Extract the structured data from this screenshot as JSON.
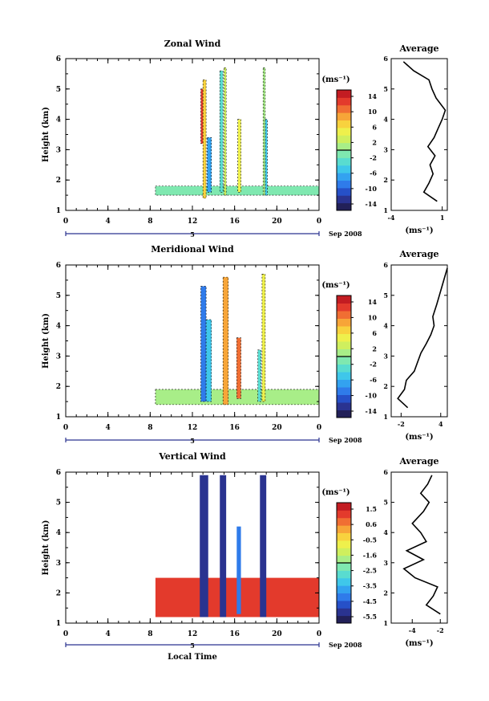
{
  "panels": [
    {
      "title": "Zonal Wind",
      "ylabel": "Height (km)",
      "x_ticks": [
        "0",
        "4",
        "8",
        "12",
        "16",
        "20",
        "0"
      ],
      "y_ticks": [
        "1",
        "2",
        "3",
        "4",
        "5",
        "6"
      ],
      "date_marker": "5",
      "date_label": "Sep 2008",
      "colorbar": {
        "unit": "(ms⁻¹)",
        "ticks": [
          "14",
          "10",
          "6",
          "2",
          "-2",
          "-6",
          "-10",
          "-14"
        ],
        "range": [
          -16,
          16
        ]
      },
      "average": {
        "title": "Average",
        "x_ticks": [
          "-4",
          "1"
        ],
        "y_ticks": [
          "1",
          "2",
          "3",
          "4",
          "5",
          "6"
        ],
        "xlabel": "(ms⁻¹)"
      }
    },
    {
      "title": "Meridional Wind",
      "ylabel": "Height (km)",
      "x_ticks": [
        "0",
        "4",
        "8",
        "12",
        "16",
        "20",
        "0"
      ],
      "y_ticks": [
        "1",
        "2",
        "3",
        "4",
        "5",
        "6"
      ],
      "date_marker": "5",
      "date_label": "Sep 2008",
      "colorbar": {
        "unit": "(ms⁻¹)",
        "ticks": [
          "14",
          "10",
          "6",
          "2",
          "-2",
          "-6",
          "-10",
          "-14"
        ],
        "range": [
          -16,
          16
        ]
      },
      "average": {
        "title": "Average",
        "x_ticks": [
          "-2",
          "4"
        ],
        "y_ticks": [
          "1",
          "2",
          "3",
          "4",
          "5",
          "6"
        ],
        "xlabel": "(ms⁻¹)"
      }
    },
    {
      "title": "Vertical Wind",
      "ylabel": "Height (km)",
      "xlabel": "Local Time",
      "x_ticks": [
        "0",
        "4",
        "8",
        "12",
        "16",
        "20",
        "0"
      ],
      "y_ticks": [
        "1",
        "2",
        "3",
        "4",
        "5",
        "6"
      ],
      "date_marker": "5",
      "date_label": "Sep 2008",
      "colorbar": {
        "unit": "(ms⁻¹)",
        "ticks": [
          "1.5",
          "0.6",
          "-0.5",
          "-1.6",
          "-2.5",
          "-3.5",
          "-4.5",
          "-5.5"
        ],
        "range": [
          -6,
          2
        ]
      },
      "average": {
        "title": "Average",
        "x_ticks": [
          "-4",
          "-2"
        ],
        "y_ticks": [
          "1",
          "2",
          "3",
          "4",
          "5",
          "6"
        ],
        "xlabel": "(ms⁻¹)"
      }
    }
  ],
  "chart_data": [
    {
      "type": "heatmap",
      "title": "Zonal Wind",
      "xlabel": "",
      "ylabel": "Height (km)",
      "xlim": [
        0,
        24
      ],
      "ylim": [
        1,
        6
      ],
      "colorbar_range": [
        -16,
        16
      ],
      "columns": [
        {
          "x0": 8.5,
          "x1": 24,
          "y0": 1.5,
          "y1": 1.8,
          "v": -2
        },
        {
          "x0": 13.0,
          "x1": 13.3,
          "y0": 1.4,
          "y1": 5.3,
          "v": 6
        },
        {
          "x0": 12.8,
          "x1": 13.0,
          "y0": 3.2,
          "y1": 5.0,
          "v": 12
        },
        {
          "x0": 13.4,
          "x1": 13.8,
          "y0": 1.6,
          "y1": 3.4,
          "v": -8
        },
        {
          "x0": 14.6,
          "x1": 14.9,
          "y0": 1.6,
          "y1": 5.6,
          "v": -4
        },
        {
          "x0": 15.0,
          "x1": 15.2,
          "y0": 1.5,
          "y1": 5.7,
          "v": 2
        },
        {
          "x0": 16.3,
          "x1": 16.6,
          "y0": 1.6,
          "y1": 4.0,
          "v": 4
        },
        {
          "x0": 18.7,
          "x1": 18.9,
          "y0": 1.5,
          "y1": 5.7,
          "v": 0
        },
        {
          "x0": 18.9,
          "x1": 19.1,
          "y0": 1.5,
          "y1": 4.0,
          "v": -6
        }
      ],
      "average_profile": {
        "xlim": [
          -4,
          1.5
        ],
        "ylim": [
          1,
          6
        ],
        "x": [
          0.5,
          -0.8,
          -0.3,
          0.1,
          -0.2,
          0.3,
          -0.4,
          0.2,
          0.6,
          1.0,
          1.3,
          0.4,
          0.0,
          -0.3,
          -1.8,
          -2.8
        ],
        "y": [
          1.3,
          1.6,
          1.9,
          2.2,
          2.5,
          2.8,
          3.1,
          3.4,
          3.7,
          4.0,
          4.3,
          4.7,
          5.0,
          5.3,
          5.6,
          5.9
        ]
      }
    },
    {
      "type": "heatmap",
      "title": "Meridional Wind",
      "xlabel": "",
      "ylabel": "Height (km)",
      "xlim": [
        0,
        24
      ],
      "ylim": [
        1,
        6
      ],
      "colorbar_range": [
        -16,
        16
      ],
      "columns": [
        {
          "x0": 8.5,
          "x1": 24,
          "y0": 1.4,
          "y1": 1.9,
          "v": 0
        },
        {
          "x0": 12.8,
          "x1": 13.3,
          "y0": 1.5,
          "y1": 5.3,
          "v": -10
        },
        {
          "x0": 13.3,
          "x1": 13.8,
          "y0": 1.5,
          "y1": 4.2,
          "v": -6
        },
        {
          "x0": 14.9,
          "x1": 15.4,
          "y0": 1.4,
          "y1": 5.6,
          "v": 8
        },
        {
          "x0": 16.2,
          "x1": 16.6,
          "y0": 1.6,
          "y1": 3.6,
          "v": 10
        },
        {
          "x0": 18.6,
          "x1": 18.9,
          "y0": 1.5,
          "y1": 5.7,
          "v": 4
        },
        {
          "x0": 18.2,
          "x1": 18.5,
          "y0": 1.5,
          "y1": 3.2,
          "v": -4
        }
      ],
      "average_profile": {
        "xlim": [
          -3.5,
          5
        ],
        "ylim": [
          1,
          6
        ],
        "x": [
          -1.0,
          -2.5,
          -1.5,
          -1.2,
          0.0,
          0.5,
          1.0,
          1.8,
          2.5,
          3.0,
          2.8,
          3.4,
          3.8,
          4.2,
          4.6,
          5.0
        ],
        "y": [
          1.3,
          1.6,
          1.9,
          2.2,
          2.5,
          2.8,
          3.1,
          3.4,
          3.7,
          4.0,
          4.3,
          4.7,
          5.0,
          5.3,
          5.6,
          5.9
        ]
      }
    },
    {
      "type": "heatmap",
      "title": "Vertical Wind",
      "xlabel": "Local Time",
      "ylabel": "Height (km)",
      "xlim": [
        0,
        24
      ],
      "ylim": [
        1,
        6
      ],
      "colorbar_range": [
        -6,
        2
      ],
      "columns": [
        {
          "x0": 8.5,
          "x1": 24,
          "y0": 1.2,
          "y1": 2.5,
          "v": 1.0
        },
        {
          "x0": 12.7,
          "x1": 13.5,
          "y0": 1.2,
          "y1": 5.9,
          "v": -5.5
        },
        {
          "x0": 14.6,
          "x1": 15.2,
          "y0": 1.2,
          "y1": 5.9,
          "v": -5.5
        },
        {
          "x0": 16.2,
          "x1": 16.6,
          "y0": 1.3,
          "y1": 4.2,
          "v": -4.5
        },
        {
          "x0": 18.4,
          "x1": 19.0,
          "y0": 1.2,
          "y1": 5.9,
          "v": -5.5
        }
      ],
      "average_profile": {
        "xlim": [
          -5.5,
          -1.5
        ],
        "ylim": [
          1,
          6
        ],
        "x": [
          -2.0,
          -3.0,
          -2.5,
          -2.2,
          -3.8,
          -4.6,
          -3.2,
          -4.4,
          -3.0,
          -3.4,
          -4.0,
          -3.2,
          -2.8,
          -3.4,
          -2.9,
          -2.6
        ],
        "y": [
          1.3,
          1.6,
          1.9,
          2.2,
          2.5,
          2.8,
          3.1,
          3.4,
          3.7,
          4.0,
          4.3,
          4.7,
          5.0,
          5.3,
          5.6,
          5.9
        ]
      }
    }
  ]
}
